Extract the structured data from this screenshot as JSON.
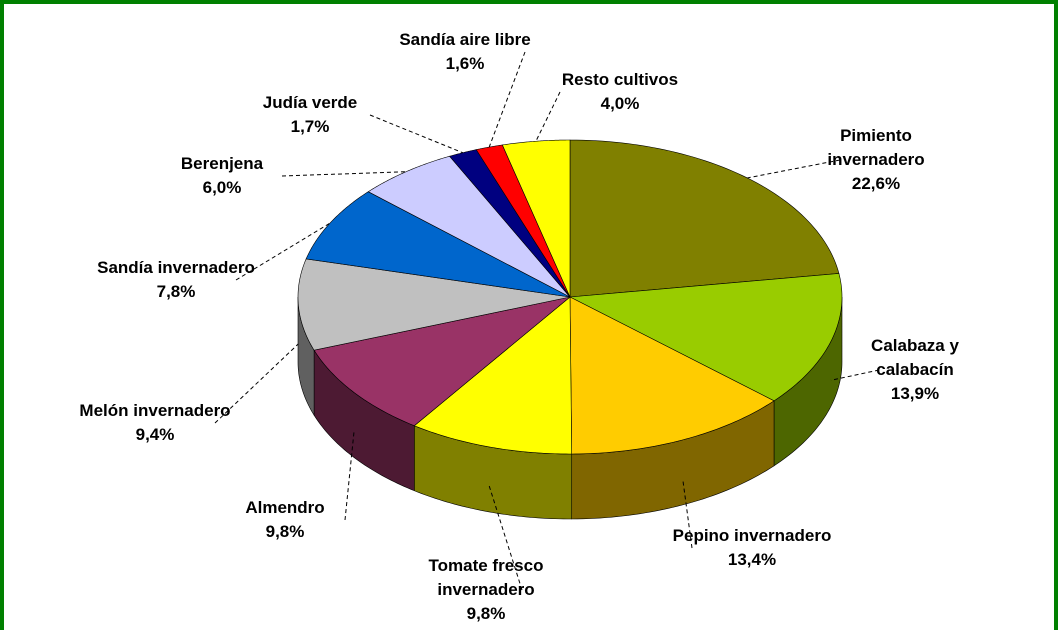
{
  "chart_data": {
    "type": "pie3d",
    "categories": [
      "Pimiento invernadero",
      "Calabaza y calabacín",
      "Pepino invernadero",
      "Tomate fresco invernadero",
      "Almendro",
      "Melón invernadero",
      "Sandía invernadero",
      "Berenjena",
      "Judía verde",
      "Sandía aire libre",
      "Resto cultivos"
    ],
    "values": [
      22.6,
      13.9,
      13.4,
      9.8,
      9.8,
      9.4,
      7.8,
      6.0,
      1.7,
      1.6,
      4.0
    ],
    "value_labels": [
      "22,6%",
      "13,9%",
      "13,4%",
      "9,8%",
      "9,8%",
      "9,4%",
      "7,8%",
      "6,0%",
      "1,7%",
      "1,6%",
      "4,0%"
    ],
    "colors": [
      "#808000",
      "#99cc00",
      "#ffcc00",
      "#ffff00",
      "#993366",
      "#c0c0c0",
      "#0066cc",
      "#ccccff",
      "#000080",
      "#ff0000",
      "#ffff00"
    ]
  }
}
